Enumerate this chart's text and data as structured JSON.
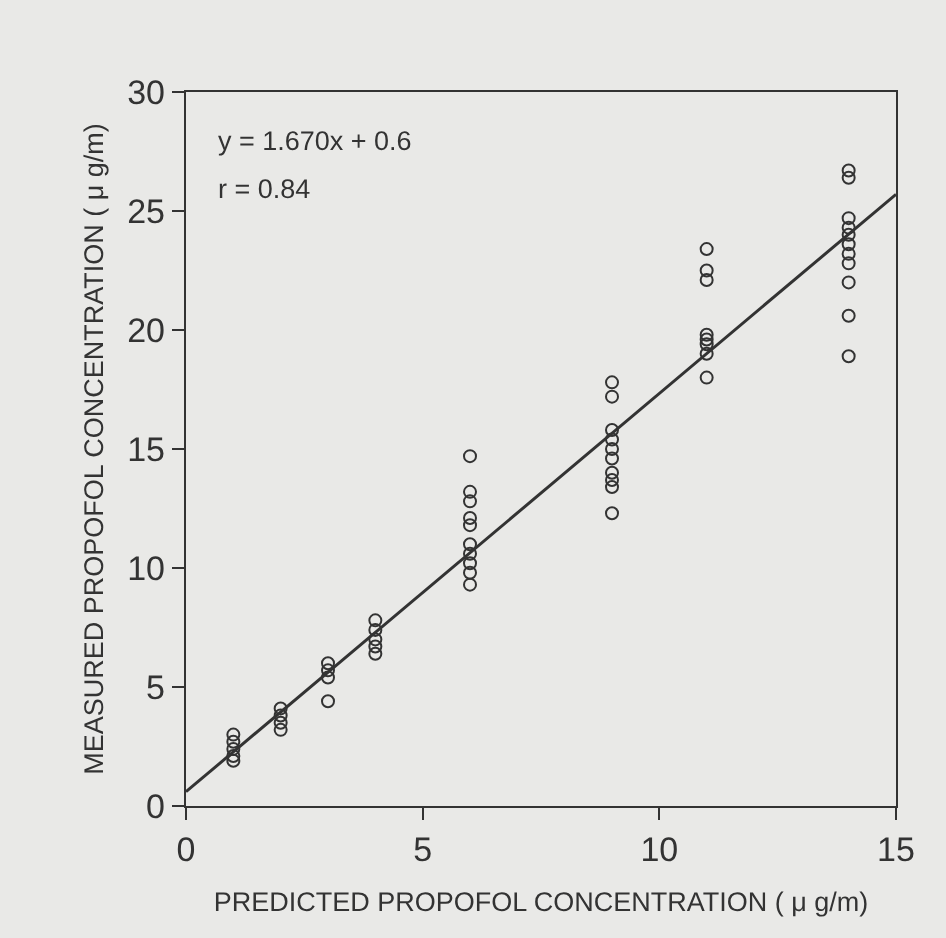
{
  "chart_data": {
    "type": "scatter",
    "xlabel": "PREDICTED PROPOFOL CONCENTRATION ( μ g/m)",
    "ylabel": "MEASURED PROPOFOL CONCENTRATION ( μ g/m)",
    "annotations": [
      "y = 1.670x + 0.6",
      "r = 0.84"
    ],
    "xlim": [
      0,
      15
    ],
    "xticks": [
      0,
      5,
      10,
      15
    ],
    "ylim": [
      0,
      30
    ],
    "yticks": [
      0,
      5,
      10,
      15,
      20,
      25,
      30
    ],
    "grid": false,
    "marker": "circle",
    "series": [
      {
        "color": "#333333",
        "x": [
          1,
          1,
          1,
          1,
          1,
          2,
          2,
          2,
          2,
          3,
          3,
          3,
          3,
          4,
          4,
          4,
          4,
          4,
          6,
          6,
          6,
          6,
          6,
          6,
          6,
          6,
          6,
          6,
          9,
          9,
          9,
          9,
          9,
          9,
          9,
          9,
          9,
          9,
          11,
          11,
          11,
          11,
          11,
          11,
          11,
          11,
          14,
          14,
          14,
          14,
          14,
          14,
          14,
          14,
          14,
          14,
          14
        ],
        "values": [
          1.9,
          2.1,
          2.4,
          2.7,
          3.0,
          3.2,
          3.5,
          3.8,
          4.1,
          4.4,
          5.4,
          5.7,
          6.0,
          6.4,
          6.7,
          7.0,
          7.4,
          7.8,
          14.7,
          13.2,
          12.8,
          12.1,
          11.8,
          11.0,
          10.6,
          10.2,
          9.8,
          9.3,
          17.8,
          17.2,
          15.8,
          15.4,
          15.0,
          14.6,
          14.0,
          13.7,
          13.4,
          12.3,
          23.4,
          22.5,
          22.1,
          19.8,
          19.6,
          19.4,
          19.0,
          18.0,
          26.7,
          26.4,
          24.7,
          24.3,
          24.0,
          23.6,
          23.2,
          22.8,
          22.0,
          20.6,
          18.9
        ]
      },
      {
        "type": "line",
        "color": "#333333",
        "line_style": "solid",
        "marker": "none",
        "x": [
          0,
          15
        ],
        "values": [
          0.6,
          25.7
        ]
      }
    ]
  }
}
